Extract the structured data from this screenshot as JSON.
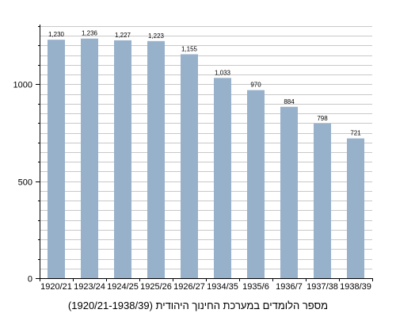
{
  "chart_data": {
    "type": "bar",
    "title": "מספר הלומדים במערכת החינוך היהודית (1920/21-1938/39)",
    "xlabel": "",
    "ylabel": "",
    "categories": [
      "1920/21",
      "1923/24",
      "1924/25",
      "1925/26",
      "1926/27",
      "1934/35",
      "1935/6",
      "1936/7",
      "1937/38",
      "1938/39"
    ],
    "values": [
      1230,
      1236,
      1227,
      1223,
      1155,
      1033,
      970,
      884,
      798,
      721
    ],
    "value_labels": [
      "1,230",
      "1,236",
      "1,227",
      "1,223",
      "1,155",
      "1,033",
      "970",
      "884",
      "798",
      "721"
    ],
    "ylim": [
      0,
      1300
    ],
    "yticks": [
      0,
      500,
      1000
    ],
    "ytick_labels": [
      "0",
      "500",
      "1000"
    ],
    "minor_tick_step": 100,
    "grid_step": 50,
    "grid": true,
    "legend": "none",
    "bar_color": "#97b1cb",
    "grid_color": "#c8c8c8"
  }
}
